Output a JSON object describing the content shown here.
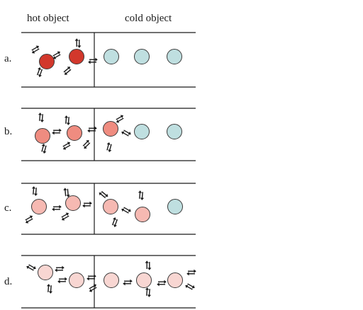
{
  "headers": {
    "hot": "hot object",
    "cold": "cold object"
  },
  "colors": {
    "hot_dark": "#d2382c",
    "hot_mid": "#ef8c80",
    "hot_light": "#f6b9b2",
    "hot_palest": "#f8d6d2",
    "cold": "#bfdfe0",
    "line": "#1a1a1a"
  },
  "rows": [
    {
      "label": "a.",
      "particles": [
        {
          "side": "hot",
          "color": "hot_dark"
        },
        {
          "side": "hot",
          "color": "hot_dark"
        },
        {
          "side": "cold",
          "color": "cold"
        },
        {
          "side": "cold",
          "color": "cold"
        },
        {
          "side": "cold",
          "color": "cold"
        }
      ]
    },
    {
      "label": "b.",
      "particles": [
        {
          "side": "hot",
          "color": "hot_mid"
        },
        {
          "side": "hot",
          "color": "hot_mid"
        },
        {
          "side": "cold",
          "color": "hot_mid"
        },
        {
          "side": "cold",
          "color": "cold"
        },
        {
          "side": "cold",
          "color": "cold"
        }
      ]
    },
    {
      "label": "c.",
      "particles": [
        {
          "side": "hot",
          "color": "hot_light"
        },
        {
          "side": "hot",
          "color": "hot_light"
        },
        {
          "side": "cold",
          "color": "hot_light"
        },
        {
          "side": "cold",
          "color": "hot_light"
        },
        {
          "side": "cold",
          "color": "cold"
        }
      ]
    },
    {
      "label": "d.",
      "particles": [
        {
          "side": "hot",
          "color": "hot_palest"
        },
        {
          "side": "hot",
          "color": "hot_palest"
        },
        {
          "side": "cold",
          "color": "hot_palest"
        },
        {
          "side": "cold",
          "color": "hot_palest"
        },
        {
          "side": "cold",
          "color": "hot_palest"
        }
      ]
    }
  ]
}
